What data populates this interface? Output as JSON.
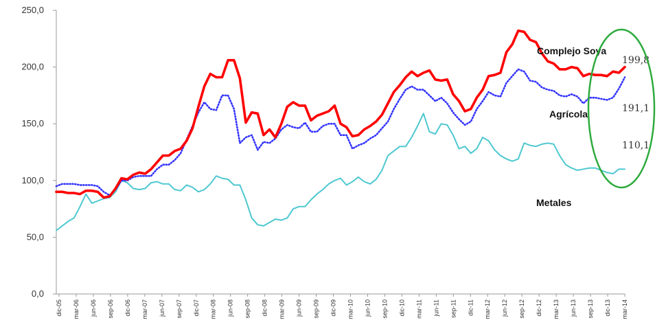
{
  "chart_data": {
    "type": "line",
    "title": "",
    "xlabel": "",
    "ylabel": "",
    "ylim": [
      0,
      250
    ],
    "yticks": [
      0,
      50,
      100,
      150,
      200,
      250
    ],
    "ytick_labels": [
      "0,0",
      "50,0",
      "100,0",
      "150,0",
      "200,0",
      "250,0"
    ],
    "grid": false,
    "x_tick_labels": [
      "dic-05",
      "mar-06",
      "jun-06",
      "sep-06",
      "dic-06",
      "mar-07",
      "jun-07",
      "sep-07",
      "dic-07",
      "mar-08",
      "jun-08",
      "sep-08",
      "dic-08",
      "mar-09",
      "jun-09",
      "sep-09",
      "dic-09",
      "mar-10",
      "jun-10",
      "sep-10",
      "dic-10",
      "mar-11",
      "jun-11",
      "sep-11",
      "dic-11",
      "mar-12",
      "jun-12",
      "sep-12",
      "dic-12",
      "mar-13",
      "jun-13",
      "sep-13",
      "dic-13",
      "mar-14"
    ],
    "series": [
      {
        "name": "Complejo Soya",
        "color": "#ff0000",
        "style": "solid",
        "end_label": "199,8",
        "values": [
          90,
          90,
          89,
          89,
          88,
          91,
          91,
          90,
          85,
          86,
          93,
          102,
          101,
          105,
          107,
          106,
          110,
          116,
          122,
          122,
          126,
          128,
          135,
          146,
          165,
          183,
          194,
          191,
          191,
          206,
          206,
          190,
          151,
          160,
          159,
          140,
          145,
          138,
          150,
          165,
          169,
          166,
          166,
          153,
          157,
          159,
          161,
          166,
          150,
          147,
          139,
          140,
          145,
          148,
          152,
          158,
          168,
          178,
          184,
          191,
          196,
          192,
          195,
          197,
          189,
          188,
          189,
          176,
          170,
          161,
          163,
          173,
          180,
          192,
          193,
          195,
          213,
          220,
          232,
          231,
          224,
          222,
          212,
          205,
          203,
          198,
          198,
          200,
          199,
          192,
          194,
          193,
          193,
          192,
          196,
          195,
          200
        ]
      },
      {
        "name": "Agrícola",
        "color": "#3333ff",
        "style": "dotted",
        "end_label": "191,1",
        "values": [
          95,
          97,
          97,
          97,
          96,
          96,
          96,
          95,
          90,
          87,
          92,
          100,
          100,
          103,
          104,
          104,
          104,
          110,
          114,
          114,
          118,
          124,
          136,
          148,
          160,
          169,
          163,
          162,
          175,
          175,
          163,
          133,
          138,
          140,
          127,
          134,
          133,
          137,
          145,
          149,
          147,
          146,
          151,
          143,
          143,
          148,
          150,
          150,
          140,
          140,
          128,
          131,
          133,
          137,
          140,
          146,
          152,
          163,
          172,
          180,
          183,
          180,
          180,
          175,
          170,
          173,
          168,
          160,
          154,
          149,
          152,
          163,
          170,
          178,
          175,
          174,
          186,
          192,
          198,
          196,
          188,
          187,
          182,
          180,
          179,
          175,
          174,
          176,
          174,
          168,
          173,
          173,
          172,
          171,
          173,
          181,
          191
        ]
      },
      {
        "name": "Metales",
        "color": "#4dc8d0",
        "style": "solid",
        "end_label": "110,1",
        "values": [
          56,
          60,
          64,
          67,
          77,
          88,
          80,
          82,
          84,
          85,
          90,
          100,
          98,
          93,
          92,
          93,
          98,
          99,
          97,
          97,
          92,
          91,
          96,
          94,
          90,
          92,
          97,
          104,
          102,
          101,
          96,
          96,
          83,
          67,
          61,
          60,
          63,
          66,
          65,
          67,
          75,
          77,
          77,
          83,
          88,
          92,
          97,
          100,
          102,
          96,
          99,
          103,
          99,
          97,
          101,
          109,
          122,
          126,
          130,
          130,
          138,
          148,
          159,
          143,
          141,
          150,
          149,
          140,
          128,
          130,
          124,
          128,
          138,
          135,
          127,
          122,
          119,
          117,
          119,
          133,
          131,
          130,
          132,
          133,
          132,
          122,
          114,
          111,
          109,
          110,
          111,
          111,
          109,
          107,
          106,
          110,
          110
        ]
      }
    ],
    "annotations": [
      "green ellipse highlighting the end values"
    ]
  }
}
